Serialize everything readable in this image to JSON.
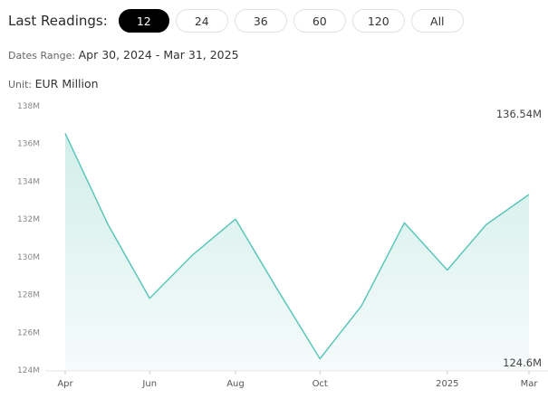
{
  "toolbar": {
    "label": "Last Readings:",
    "options": [
      "12",
      "24",
      "36",
      "60",
      "120",
      "All"
    ],
    "active_index": 0
  },
  "dates_range": {
    "label": "Dates Range:",
    "value": "Apr 30, 2024 - Mar 31, 2025"
  },
  "unit": {
    "label": "Unit:",
    "value": "EUR Million"
  },
  "colors": {
    "line": "#5cc7b8",
    "fill_top": "#cdece7",
    "fill_bottom": "#f4fbfa",
    "active_pill": "#000000"
  },
  "chart_data": {
    "type": "area",
    "x": [
      "2024-04-30",
      "2024-05-31",
      "2024-06-30",
      "2024-07-31",
      "2024-08-31",
      "2024-09-30",
      "2024-10-31",
      "2024-11-30",
      "2024-12-31",
      "2025-01-31",
      "2025-02-28",
      "2025-03-31"
    ],
    "values": [
      136.54,
      131.7,
      127.8,
      130.1,
      132.0,
      128.3,
      124.6,
      127.4,
      131.8,
      129.3,
      131.7,
      133.3
    ],
    "ylim": [
      124,
      138
    ],
    "y_ticks": [
      124,
      126,
      128,
      130,
      132,
      134,
      136,
      138
    ],
    "y_tick_labels": [
      "124M",
      "126M",
      "128M",
      "130M",
      "132M",
      "134M",
      "136M",
      "138M"
    ],
    "x_ticks": [
      "Apr",
      "Jun",
      "Aug",
      "Oct",
      "2025",
      "Mar"
    ],
    "max_label": "136.54M",
    "min_label": "124.6M",
    "grid": false
  }
}
